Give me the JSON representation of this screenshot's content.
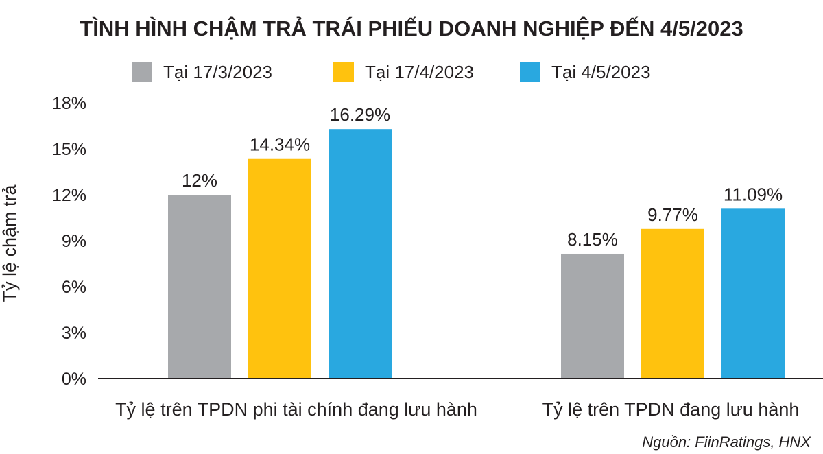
{
  "chart_data": {
    "type": "bar",
    "title": "TÌNH HÌNH CHẬM TRẢ TRÁI PHIẾU DOANH NGHIỆP ĐẾN 4/5/2023",
    "ylabel": "Tỷ lệ chậm trả",
    "xlabel": "",
    "categories": [
      "Tỷ lệ trên TPDN phi tài chính đang lưu hành",
      "Tỷ lệ trên TPDN đang lưu hành"
    ],
    "series": [
      {
        "name": "Tại 17/3/2023",
        "color": "#a7a9ac",
        "values": [
          12,
          8.15
        ],
        "labels": [
          "12%",
          "8.15%"
        ]
      },
      {
        "name": "Tại 17/4/2023",
        "color": "#ffc20e",
        "values": [
          14.34,
          9.77
        ],
        "labels": [
          "14.34%",
          "9.77%"
        ]
      },
      {
        "name": "Tại 4/5/2023",
        "color": "#29a8e0",
        "values": [
          16.29,
          11.09
        ],
        "labels": [
          "16.29%",
          "11.09%"
        ]
      }
    ],
    "yticks": [
      "0%",
      "3%",
      "6%",
      "9%",
      "12%",
      "15%",
      "18%"
    ],
    "ytick_values": [
      0,
      3,
      6,
      9,
      12,
      15,
      18
    ],
    "ylim": [
      0,
      18
    ],
    "grid": false,
    "legend_position": "top-center",
    "source": "Nguồn: FiinRatings, HNX"
  }
}
